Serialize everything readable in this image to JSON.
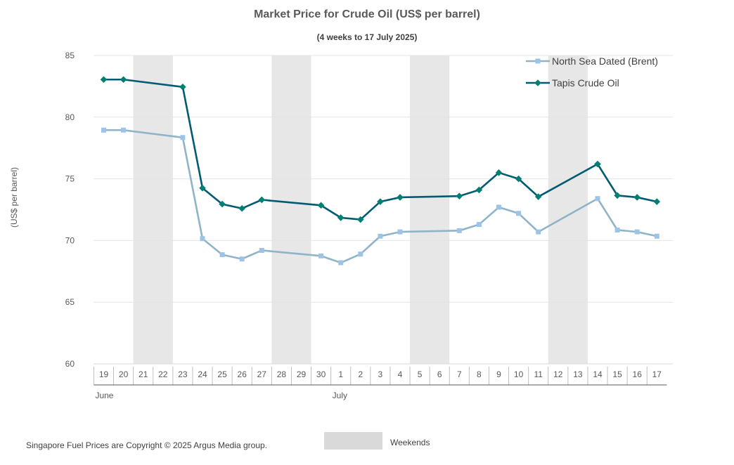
{
  "chart_data": {
    "type": "line",
    "title": "Market Price for Crude Oil (US$ per barrel)",
    "subtitle": "(4 weeks to 17 July 2025)",
    "ylabel": "(US$ per barrel)",
    "ylim": [
      60,
      85
    ],
    "yticks": [
      "60",
      "65",
      "70",
      "75",
      "80",
      "85"
    ],
    "categories": [
      "19",
      "20",
      "21",
      "22",
      "23",
      "24",
      "25",
      "26",
      "27",
      "28",
      "29",
      "30",
      "1",
      "2",
      "3",
      "4",
      "5",
      "6",
      "7",
      "8",
      "9",
      "10",
      "11",
      "12",
      "13",
      "14",
      "15",
      "16",
      "17"
    ],
    "month_labels": [
      {
        "label": "June",
        "start_index": 0,
        "end_index": 11
      },
      {
        "label": "July",
        "start_index": 12,
        "end_index": 28
      }
    ],
    "weekend_index_pairs": [
      [
        2,
        3
      ],
      [
        9,
        10
      ],
      [
        16,
        17
      ],
      [
        23,
        24
      ]
    ],
    "series": [
      {
        "name": "North Sea Dated (Brent)",
        "color": "#8fb4c8",
        "marker_color": "#9dc3e6",
        "marker": "square",
        "values": [
          78.95,
          78.95,
          null,
          null,
          78.35,
          70.15,
          68.85,
          68.5,
          69.2,
          null,
          null,
          68.75,
          68.2,
          68.9,
          70.35,
          70.7,
          null,
          null,
          70.8,
          71.3,
          72.7,
          72.2,
          70.7,
          null,
          null,
          73.4,
          70.85,
          70.7,
          70.35
        ]
      },
      {
        "name": "Tapis Crude Oil",
        "color": "#005b73",
        "marker_color": "#008072",
        "marker": "diamond",
        "values": [
          83.05,
          83.05,
          null,
          null,
          82.45,
          74.25,
          72.95,
          72.6,
          73.3,
          null,
          null,
          72.85,
          71.85,
          71.7,
          73.15,
          73.5,
          null,
          null,
          73.6,
          74.1,
          75.5,
          75.0,
          73.55,
          null,
          null,
          76.2,
          73.65,
          73.5,
          73.15
        ]
      }
    ],
    "legend_position": "top-right",
    "weekend_legend_label": "Weekends"
  },
  "footer": {
    "copyright": "Singapore Fuel Prices are Copyright © 2025 Argus Media group."
  }
}
